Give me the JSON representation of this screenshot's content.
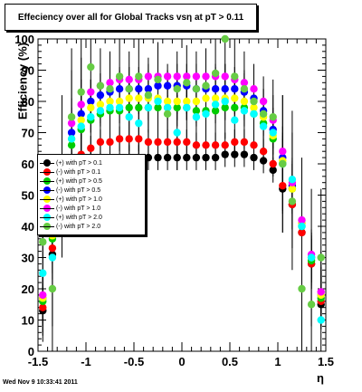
{
  "window": {
    "title": "Effeciency over all for Global Tracks vsη at pT > 0.11"
  },
  "footer": {
    "timestamp": "Wed Nov  9 10:33:41 2011"
  },
  "chart_data": {
    "type": "scatter",
    "title": "Effeciency over all for Global Tracks vsη at pT > 0.11",
    "xlabel": "η",
    "ylabel": "Efficiency (%)",
    "xlim": [
      -1.5,
      1.5
    ],
    "ylim": [
      0,
      100
    ],
    "x_ticks": [
      "-1.5",
      "-1",
      "-0.5",
      "0",
      "0.5",
      "1",
      "1.5"
    ],
    "y_ticks": [
      "0",
      "10",
      "20",
      "30",
      "40",
      "50",
      "60",
      "70",
      "80",
      "90",
      "100"
    ],
    "grid": false,
    "legend_position": "left-middle",
    "series": [
      {
        "name": "(+) with pT > 0.1",
        "color": "#000000",
        "x": [
          -1.45,
          -1.35,
          -1.25,
          -1.15,
          -1.05,
          -0.95,
          -0.85,
          -0.75,
          -0.65,
          -0.55,
          -0.45,
          -0.35,
          -0.25,
          -0.15,
          -0.05,
          0.05,
          0.15,
          0.25,
          0.35,
          0.45,
          0.55,
          0.65,
          0.75,
          0.85,
          0.95,
          1.05,
          1.15,
          1.25,
          1.35,
          1.45
        ],
        "y": [
          13,
          31,
          48,
          56,
          58,
          60,
          61,
          61,
          62,
          62,
          62,
          62,
          62,
          62,
          62,
          62,
          62,
          62,
          62,
          63,
          63,
          63,
          62,
          61,
          58,
          52,
          47,
          38,
          28,
          15
        ]
      },
      {
        "name": "(-) with pT > 0.1",
        "color": "#ff0000",
        "x": [
          -1.45,
          -1.35,
          -1.25,
          -1.15,
          -1.05,
          -0.95,
          -0.85,
          -0.75,
          -0.65,
          -0.55,
          -0.45,
          -0.35,
          -0.25,
          -0.15,
          -0.05,
          0.05,
          0.15,
          0.25,
          0.35,
          0.45,
          0.55,
          0.65,
          0.75,
          0.85,
          0.95,
          1.05,
          1.15,
          1.25,
          1.35,
          1.45
        ],
        "y": [
          14,
          33,
          51,
          60,
          63,
          65,
          67,
          67,
          68,
          68,
          68,
          67,
          67,
          67,
          67,
          67,
          66,
          66,
          66,
          66,
          67,
          67,
          66,
          64,
          60,
          53,
          47,
          38,
          28,
          16
        ]
      },
      {
        "name": "(+) with pT > 0.5",
        "color": "#00cc00",
        "x": [
          -1.45,
          -1.35,
          -1.25,
          -1.15,
          -1.05,
          -0.95,
          -0.85,
          -0.75,
          -0.65,
          -0.55,
          -0.45,
          -0.35,
          -0.25,
          -0.15,
          -0.05,
          0.05,
          0.15,
          0.25,
          0.35,
          0.45,
          0.55,
          0.65,
          0.75,
          0.85,
          0.95,
          1.05,
          1.15,
          1.25,
          1.35,
          1.45
        ],
        "y": [
          16,
          36,
          56,
          66,
          71,
          74,
          76,
          77,
          77,
          78,
          78,
          78,
          78,
          78,
          78,
          78,
          77,
          77,
          77,
          78,
          78,
          78,
          76,
          73,
          68,
          60,
          52,
          40,
          29,
          17
        ]
      },
      {
        "name": "(-) with pT > 0.5",
        "color": "#0000ff",
        "x": [
          -1.45,
          -1.35,
          -1.25,
          -1.15,
          -1.05,
          -0.95,
          -0.85,
          -0.75,
          -0.65,
          -0.55,
          -0.45,
          -0.35,
          -0.25,
          -0.15,
          -0.05,
          0.05,
          0.15,
          0.25,
          0.35,
          0.45,
          0.55,
          0.65,
          0.75,
          0.85,
          0.95,
          1.05,
          1.15,
          1.25,
          1.35,
          1.45
        ],
        "y": [
          17,
          38,
          59,
          70,
          76,
          80,
          82,
          83,
          84,
          84,
          84,
          84,
          85,
          85,
          85,
          85,
          84,
          84,
          84,
          84,
          84,
          83,
          81,
          77,
          71,
          62,
          53,
          41,
          30,
          18
        ]
      },
      {
        "name": "(+) with pT > 1.0",
        "color": "#ffff00",
        "x": [
          -1.45,
          -1.35,
          -1.25,
          -1.15,
          -1.05,
          -0.95,
          -0.85,
          -0.75,
          -0.65,
          -0.55,
          -0.45,
          -0.35,
          -0.25,
          -0.15,
          -0.05,
          0.05,
          0.15,
          0.25,
          0.35,
          0.45,
          0.55,
          0.65,
          0.75,
          0.85,
          0.95,
          1.05,
          1.15,
          1.25,
          1.35,
          1.45
        ],
        "y": [
          17,
          37,
          58,
          68,
          74,
          78,
          79,
          80,
          80,
          81,
          81,
          81,
          81,
          80,
          80,
          80,
          80,
          81,
          81,
          81,
          81,
          80,
          78,
          75,
          69,
          61,
          52,
          41,
          30,
          18
        ]
      },
      {
        "name": "(-) with pT > 1.0",
        "color": "#ff00ff",
        "x": [
          -1.45,
          -1.35,
          -1.25,
          -1.15,
          -1.05,
          -0.95,
          -0.85,
          -0.75,
          -0.65,
          -0.55,
          -0.45,
          -0.35,
          -0.25,
          -0.15,
          -0.05,
          0.05,
          0.15,
          0.25,
          0.35,
          0.45,
          0.55,
          0.65,
          0.75,
          0.85,
          0.95,
          1.05,
          1.15,
          1.25,
          1.35,
          1.45
        ],
        "y": [
          18,
          39,
          61,
          73,
          79,
          83,
          85,
          86,
          87,
          87,
          87,
          88,
          88,
          88,
          88,
          88,
          88,
          88,
          88,
          88,
          87,
          86,
          84,
          80,
          74,
          64,
          54,
          42,
          31,
          19
        ]
      },
      {
        "name": "(+) with pT > 2.0",
        "color": "#00ffff",
        "x": [
          -1.45,
          -1.35,
          -1.25,
          -1.15,
          -1.05,
          -0.95,
          -0.85,
          -0.75,
          -0.65,
          -0.55,
          -0.45,
          -0.35,
          -0.25,
          -0.15,
          -0.05,
          0.05,
          0.15,
          0.25,
          0.35,
          0.45,
          0.55,
          0.65,
          0.75,
          0.85,
          0.95,
          1.05,
          1.15,
          1.25,
          1.35,
          1.45
        ],
        "y": [
          25,
          30,
          52,
          68,
          72,
          75,
          77,
          78,
          78,
          75,
          73,
          78,
          80,
          78,
          70,
          78,
          75,
          76,
          79,
          80,
          74,
          77,
          76,
          72,
          70,
          60,
          55,
          40,
          30,
          10
        ]
      },
      {
        "name": "(-) with pT > 2.0",
        "color": "#66cc44",
        "x": [
          -1.45,
          -1.35,
          -1.25,
          -1.15,
          -1.05,
          -0.95,
          -0.85,
          -0.75,
          -0.65,
          -0.55,
          -0.45,
          -0.35,
          -0.25,
          -0.15,
          -0.05,
          0.05,
          0.15,
          0.25,
          0.35,
          0.45,
          0.55,
          0.65,
          0.75,
          0.85,
          0.95,
          1.05,
          1.15,
          1.25,
          1.35,
          1.45
        ],
        "y": [
          35,
          20,
          60,
          75,
          83,
          91,
          85,
          84,
          88,
          84,
          88,
          82,
          87,
          76,
          84,
          86,
          84,
          85,
          89,
          100,
          88,
          84,
          80,
          76,
          75,
          60,
          48,
          20,
          15,
          30
        ]
      }
    ]
  }
}
